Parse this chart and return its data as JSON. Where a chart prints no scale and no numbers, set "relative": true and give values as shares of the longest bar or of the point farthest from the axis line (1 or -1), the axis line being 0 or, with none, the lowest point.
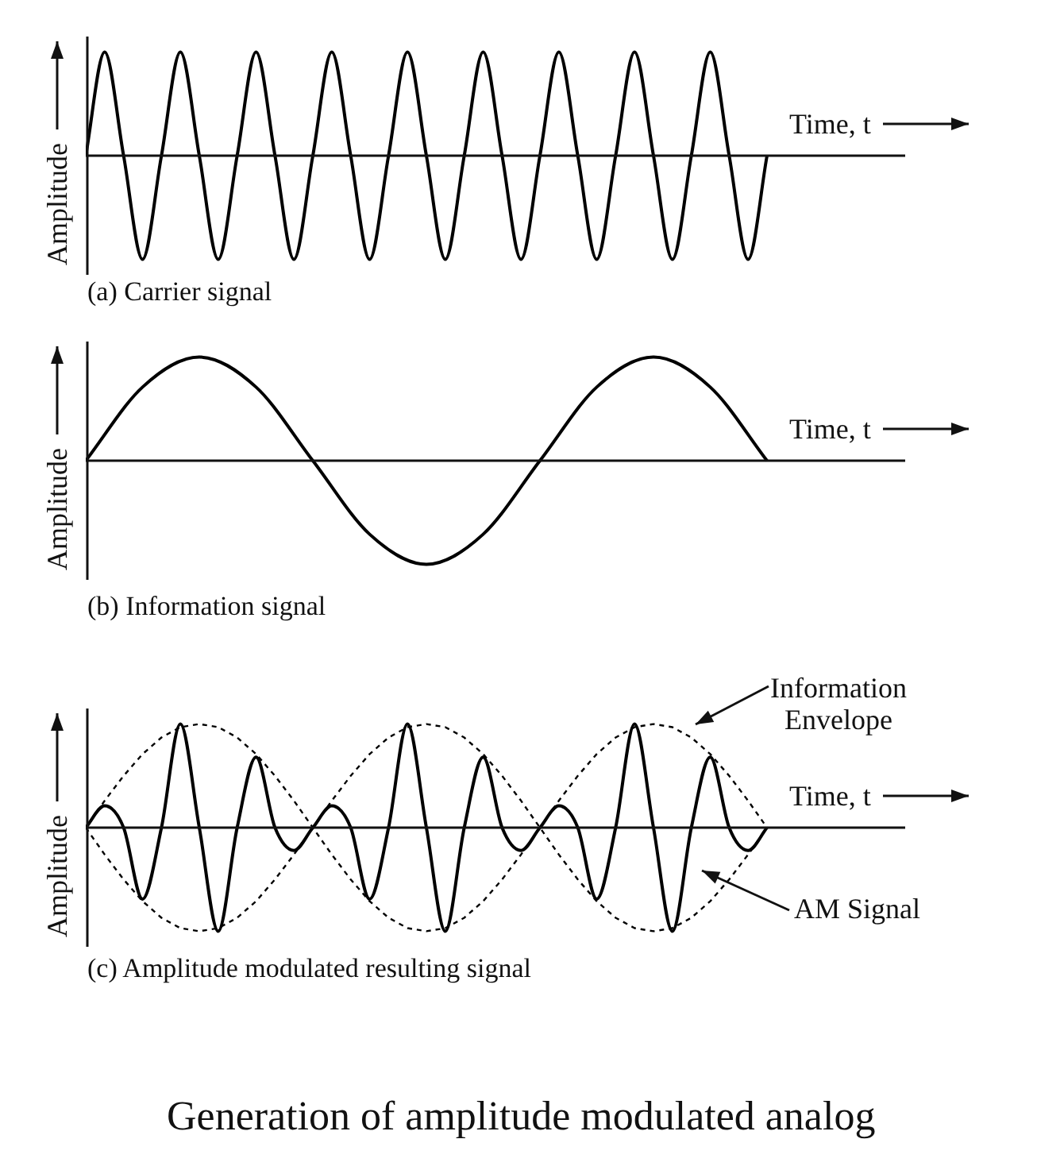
{
  "chart_data": [
    {
      "type": "line",
      "relative": true,
      "title": "(a) Carrier signal",
      "xlabel": "Time, t",
      "ylabel": "Amplitude",
      "marker": "none",
      "legend": false,
      "categories": [
        null,
        null,
        null,
        null,
        null,
        null,
        null,
        null,
        null,
        null,
        null,
        null,
        null,
        null,
        null,
        null,
        null,
        null,
        null,
        null,
        null,
        null,
        null,
        null,
        null,
        null,
        null,
        null,
        null,
        null,
        null,
        null,
        null,
        null,
        null,
        null,
        null
      ],
      "series": [
        {
          "color": "#000000",
          "line_style": "solid",
          "values": [
            0,
            1,
            0,
            -1,
            0,
            1,
            0,
            -1,
            0,
            1,
            0,
            -1,
            0,
            1,
            0,
            -1,
            0,
            1,
            0,
            -1,
            0,
            1,
            0,
            -1,
            0,
            1,
            0,
            -1,
            0,
            1,
            0,
            -1,
            0,
            1,
            0,
            -1,
            0
          ]
        }
      ]
    },
    {
      "type": "line",
      "relative": true,
      "title": "(b) Information signal",
      "xlabel": "Time, t",
      "ylabel": "Amplitude",
      "marker": "none",
      "legend": false,
      "categories": [
        null,
        null,
        null,
        null,
        null,
        null,
        null,
        null,
        null,
        null,
        null,
        null,
        null
      ],
      "series": [
        {
          "color": "#000000",
          "line_style": "solid",
          "values": [
            0,
            0.71,
            1,
            0.71,
            0,
            -0.71,
            -1,
            -0.71,
            0,
            0.71,
            1,
            0.71,
            0
          ]
        }
      ]
    },
    {
      "type": "line",
      "relative": true,
      "title": "(c) Amplitude modulated resulting signal",
      "xlabel": "Time, t",
      "ylabel": "Amplitude",
      "marker": "none",
      "legend": false,
      "annotations": [
        "Generation of amplitude modulated analog"
      ],
      "categories": [
        null,
        null,
        null,
        null,
        null,
        null,
        null,
        null,
        null,
        null,
        null,
        null,
        null,
        null,
        null,
        null,
        null,
        null,
        null,
        null,
        null,
        null,
        null,
        null,
        null,
        null,
        null,
        null,
        null,
        null,
        null,
        null,
        null,
        null,
        null,
        null,
        null
      ],
      "series": [
        {
          "name": "AM Signal",
          "color": "#000000",
          "line_style": "solid",
          "values": [
            0,
            0.21,
            0,
            -0.69,
            0,
            1,
            0,
            -1,
            0,
            0.68,
            0,
            -0.22,
            0,
            0.21,
            0,
            -0.69,
            0,
            1,
            0,
            -1,
            0,
            0.68,
            0,
            -0.22,
            0,
            0.21,
            0,
            -0.69,
            0,
            1,
            0,
            -1,
            0,
            0.68,
            0,
            -0.22,
            0
          ]
        },
        {
          "name": "Information Envelope",
          "color": "#000000",
          "line_style": "dashed",
          "values": [
            0,
            0.26,
            0.5,
            0.71,
            0.87,
            0.97,
            1,
            0.97,
            0.87,
            0.71,
            0.5,
            0.26,
            0,
            0.26,
            0.5,
            0.71,
            0.87,
            0.97,
            1,
            0.97,
            0.87,
            0.71,
            0.5,
            0.26,
            0,
            0.26,
            0.5,
            0.71,
            0.87,
            0.97,
            1,
            0.97,
            0.87,
            0.71,
            0.5,
            0.26,
            0
          ]
        },
        {
          "color": "#000000",
          "line_style": "dashed",
          "values": [
            0,
            -0.26,
            -0.5,
            -0.71,
            -0.87,
            -0.97,
            -1,
            -0.97,
            -0.87,
            -0.71,
            -0.5,
            -0.26,
            0,
            -0.26,
            -0.5,
            -0.71,
            -0.87,
            -0.97,
            -1,
            -0.97,
            -0.87,
            -0.71,
            -0.5,
            -0.26,
            0,
            -0.26,
            -0.5,
            -0.71,
            -0.87,
            -0.97,
            -1,
            -0.97,
            -0.87,
            -0.71,
            -0.5,
            -0.26,
            0
          ]
        }
      ]
    }
  ]
}
